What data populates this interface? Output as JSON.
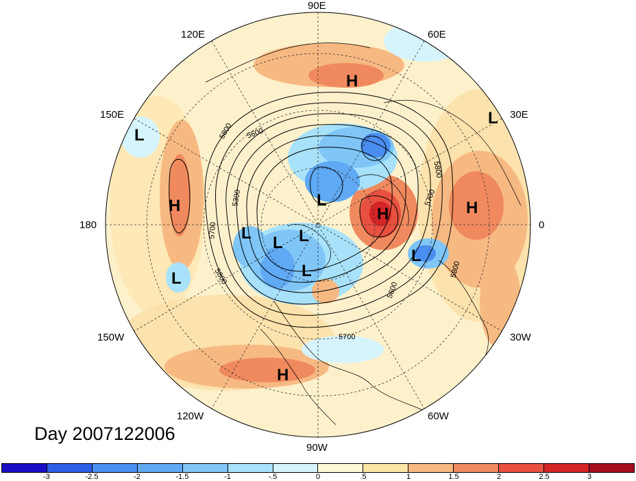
{
  "title": "Day 2007122006",
  "longitude_labels": {
    "top": "90E",
    "bottom": "90W",
    "left": "180",
    "right": "0",
    "upper_left_1": "120E",
    "upper_left_2": "150E",
    "upper_right_1": "60E",
    "upper_right_2": "30E",
    "lower_left_1": "150W",
    "lower_left_2": "120W",
    "lower_right_1": "30W",
    "lower_right_2": "60W"
  },
  "contour_labels": [
    "5800",
    "5600",
    "5300",
    "5700",
    "5800",
    "5800",
    "5700",
    "5600",
    "5700",
    "5800",
    "5700",
    "5800"
  ],
  "pressure_centers": [
    "H",
    "L",
    "L",
    "H",
    "L",
    "L",
    "L",
    "L",
    "L",
    "L",
    "H",
    "H",
    "L",
    "H",
    "L"
  ],
  "colorbar": {
    "labels": [
      "-3",
      "-2.5",
      "-2",
      "-1.5",
      "-1",
      "-.5",
      "0",
      ".5",
      "1",
      "1.5",
      "2",
      "2.5",
      "3"
    ],
    "colors": [
      "#1a0fc4",
      "#2e5ee6",
      "#4a8ef0",
      "#5fa9f5",
      "#7fc6f7",
      "#a8e2fa",
      "#d6f4fc",
      "#fdf9d8",
      "#fce6a6",
      "#f7b982",
      "#f08a5e",
      "#e85040",
      "#d32426",
      "#a50e1e"
    ]
  }
}
